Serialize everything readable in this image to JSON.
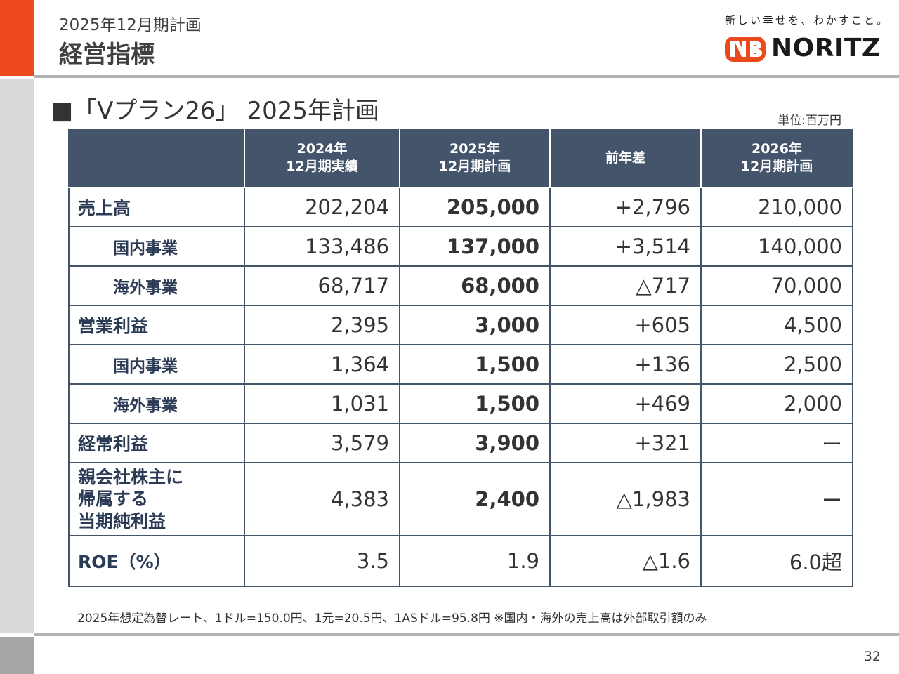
{
  "header": {
    "subtitle": "2025年12月期計画",
    "title": "経営指標"
  },
  "brand": {
    "tagline": "新しい幸せを、わかすこと。",
    "logo_text": "NORITZ",
    "accent_color": "#ec4a1c",
    "header_color": "#44546a"
  },
  "section": {
    "heading": "■「Vプラン26」 2025年計画",
    "unit": "単位:百万円"
  },
  "table": {
    "columns": [
      {
        "line1": "",
        "line2": ""
      },
      {
        "line1": "2024年",
        "line2": "12月期実績"
      },
      {
        "line1": "2025年",
        "line2": "12月期計画"
      },
      {
        "line1": "前年差",
        "line2": ""
      },
      {
        "line1": "2026年",
        "line2": "12月期計画"
      }
    ],
    "rows": [
      {
        "label": "売上高",
        "values": [
          "202,204",
          "205,000",
          "+2,796",
          "210,000"
        ]
      },
      {
        "label": "国内事業",
        "values": [
          "133,486",
          "137,000",
          "+3,514",
          "140,000"
        ]
      },
      {
        "label": "海外事業",
        "values": [
          "68,717",
          "68,000",
          "△717",
          "70,000"
        ]
      },
      {
        "label": "営業利益",
        "values": [
          "2,395",
          "3,000",
          "+605",
          "4,500"
        ]
      },
      {
        "label": "国内事業",
        "values": [
          "1,364",
          "1,500",
          "+136",
          "2,500"
        ]
      },
      {
        "label": "海外事業",
        "values": [
          "1,031",
          "1,500",
          "+469",
          "2,000"
        ]
      },
      {
        "label": "経常利益",
        "values": [
          "3,579",
          "3,900",
          "+321",
          "ー"
        ]
      },
      {
        "label_lines": [
          "親会社株主に",
          "帰属する",
          "当期純利益"
        ],
        "values": [
          "4,383",
          "2,400",
          "△1,983",
          "ー"
        ]
      },
      {
        "label": "ROE（%）",
        "values": [
          "3.5",
          "1.9",
          "△1.6",
          "6.0超"
        ]
      }
    ]
  },
  "footnote": "2025年想定為替レート、1ドル=150.0円、1元=20.5円、1ASドル=95.8円 ※国内・海外の売上高は外部取引額のみ",
  "page_number": "32"
}
